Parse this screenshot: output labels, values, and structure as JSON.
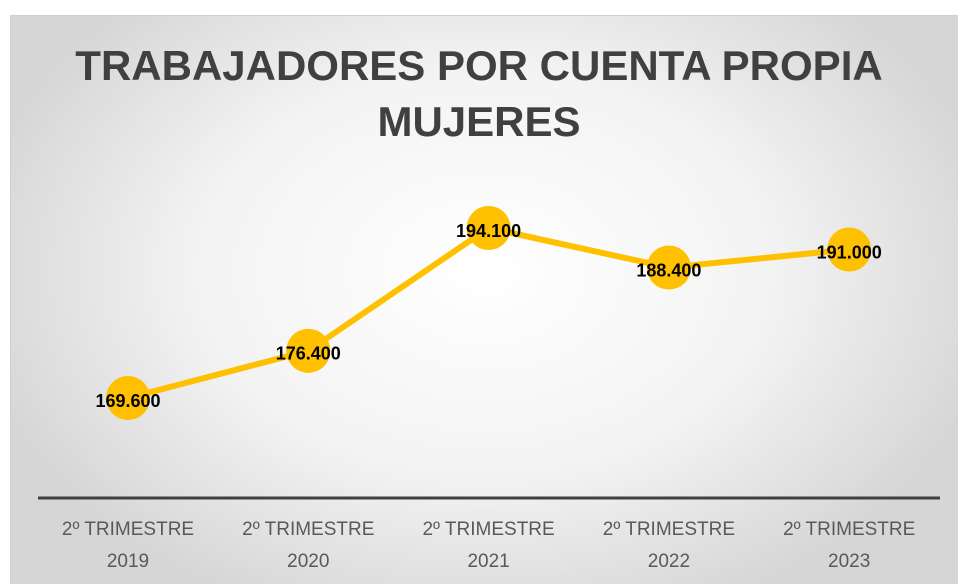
{
  "chart_data": {
    "type": "line",
    "title": "TRABAJADORES POR CUENTA PROPIA MUJERES",
    "categories": [
      "2º TRIMESTRE 2019",
      "2º TRIMESTRE 2020",
      "2º TRIMESTRE 2021",
      "2º TRIMESTRE 2022",
      "2º TRIMESTRE 2023"
    ],
    "values": [
      169600,
      176400,
      194100,
      188400,
      191000
    ],
    "value_labels": [
      "169.600",
      "176.400",
      "194.100",
      "188.400",
      "191.000"
    ],
    "color": "#FFC000"
  }
}
